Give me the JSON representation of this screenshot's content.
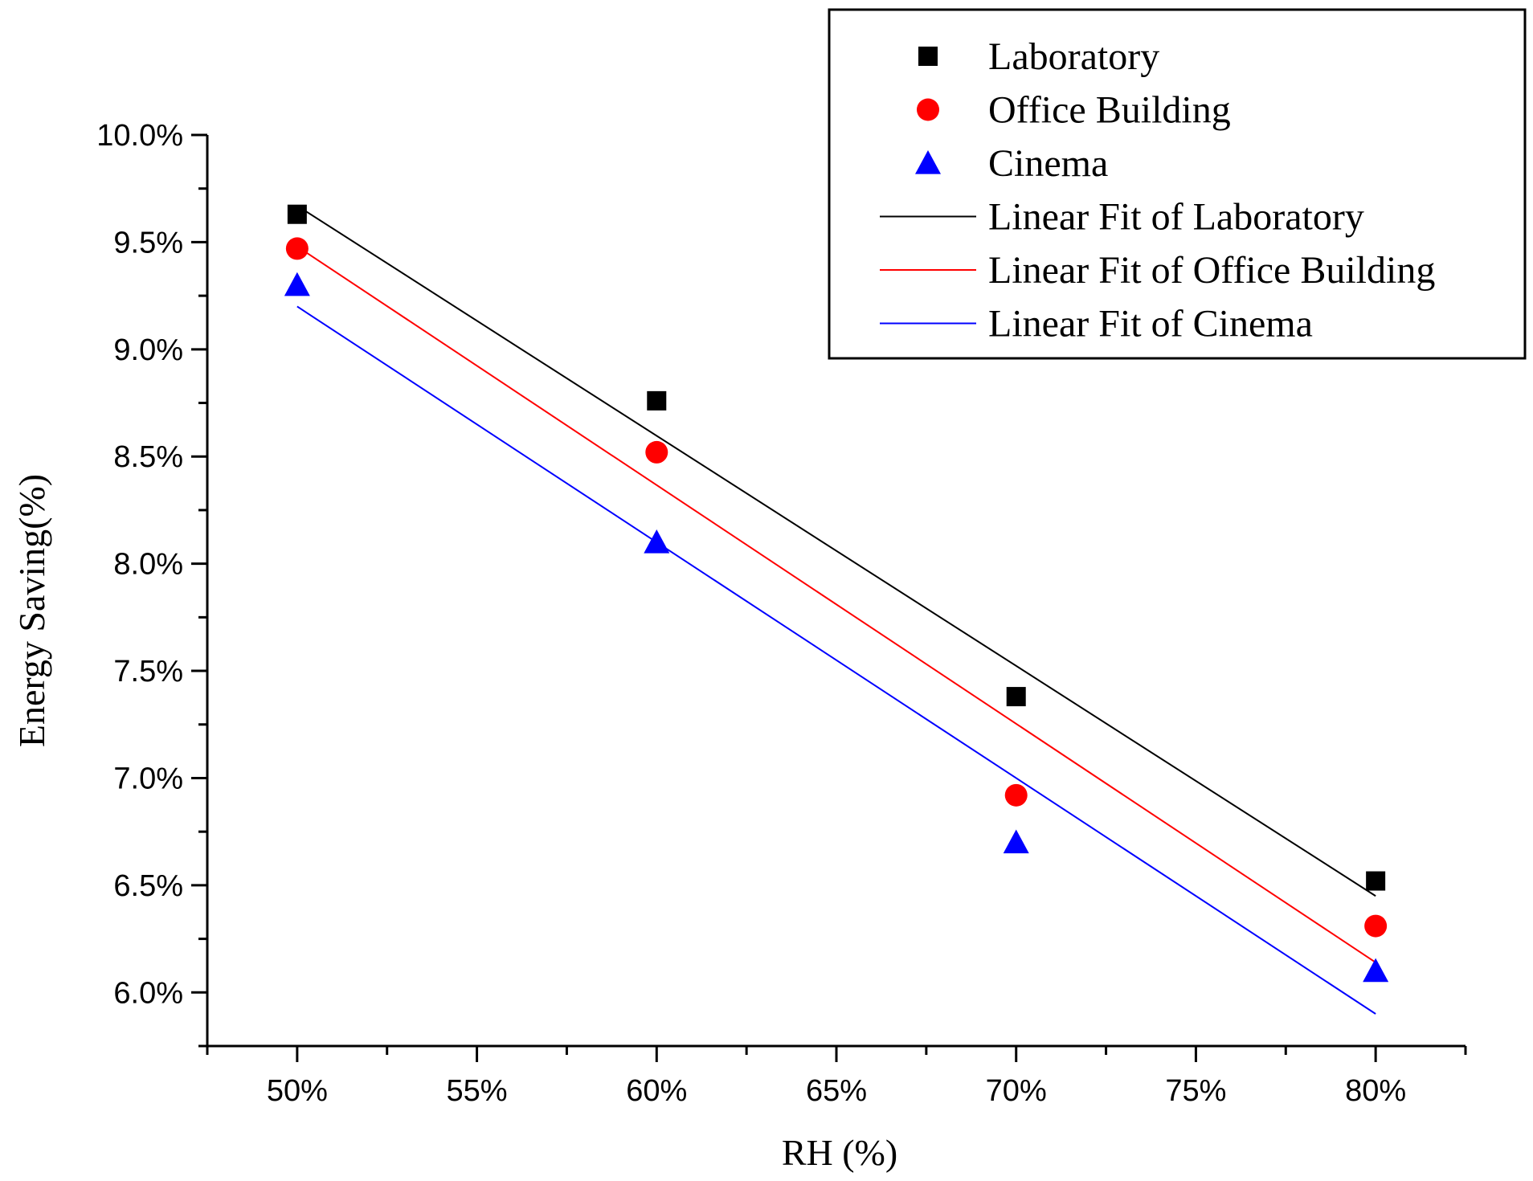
{
  "chart_data": {
    "type": "scatter",
    "title": "",
    "xlabel": "RH (%)",
    "ylabel": "Energy Saving(%)",
    "xlim": [
      47.5,
      82.5
    ],
    "ylim": [
      5.75,
      10.0
    ],
    "x_ticks": [
      50,
      55,
      60,
      65,
      70,
      75,
      80
    ],
    "x_tick_labels": [
      "50%",
      "55%",
      "60%",
      "65%",
      "70%",
      "75%",
      "80%"
    ],
    "y_ticks": [
      6.0,
      6.5,
      7.0,
      7.5,
      8.0,
      8.5,
      9.0,
      9.5,
      10.0
    ],
    "y_tick_labels": [
      "6.0%",
      "6.5%",
      "7.0%",
      "7.5%",
      "8.0%",
      "8.5%",
      "9.0%",
      "9.5%",
      "10.0%"
    ],
    "x": [
      50,
      60,
      70,
      80
    ],
    "series": [
      {
        "name": "Laboratory",
        "marker": "square",
        "color": "#000000",
        "values": [
          9.63,
          8.76,
          7.38,
          6.52
        ]
      },
      {
        "name": "Office Building",
        "marker": "circle",
        "color": "#ff0000",
        "values": [
          9.47,
          8.52,
          6.92,
          6.31
        ]
      },
      {
        "name": "Cinema",
        "marker": "triangle",
        "color": "#0000ff",
        "values": [
          9.3,
          8.1,
          6.7,
          6.1
        ]
      }
    ],
    "fits": [
      {
        "name": "Linear Fit of Laboratory",
        "color": "#000000",
        "x": [
          50,
          80
        ],
        "values": [
          9.67,
          6.45
        ]
      },
      {
        "name": "Linear Fit of Office Building",
        "color": "#ff0000",
        "values": [
          9.48,
          6.14
        ],
        "x": [
          50,
          80
        ]
      },
      {
        "name": "Linear Fit of Cinema",
        "color": "#0000ff",
        "x": [
          50,
          80
        ],
        "values": [
          9.2,
          5.9
        ]
      }
    ],
    "legend_position": "top-right",
    "grid": false
  }
}
